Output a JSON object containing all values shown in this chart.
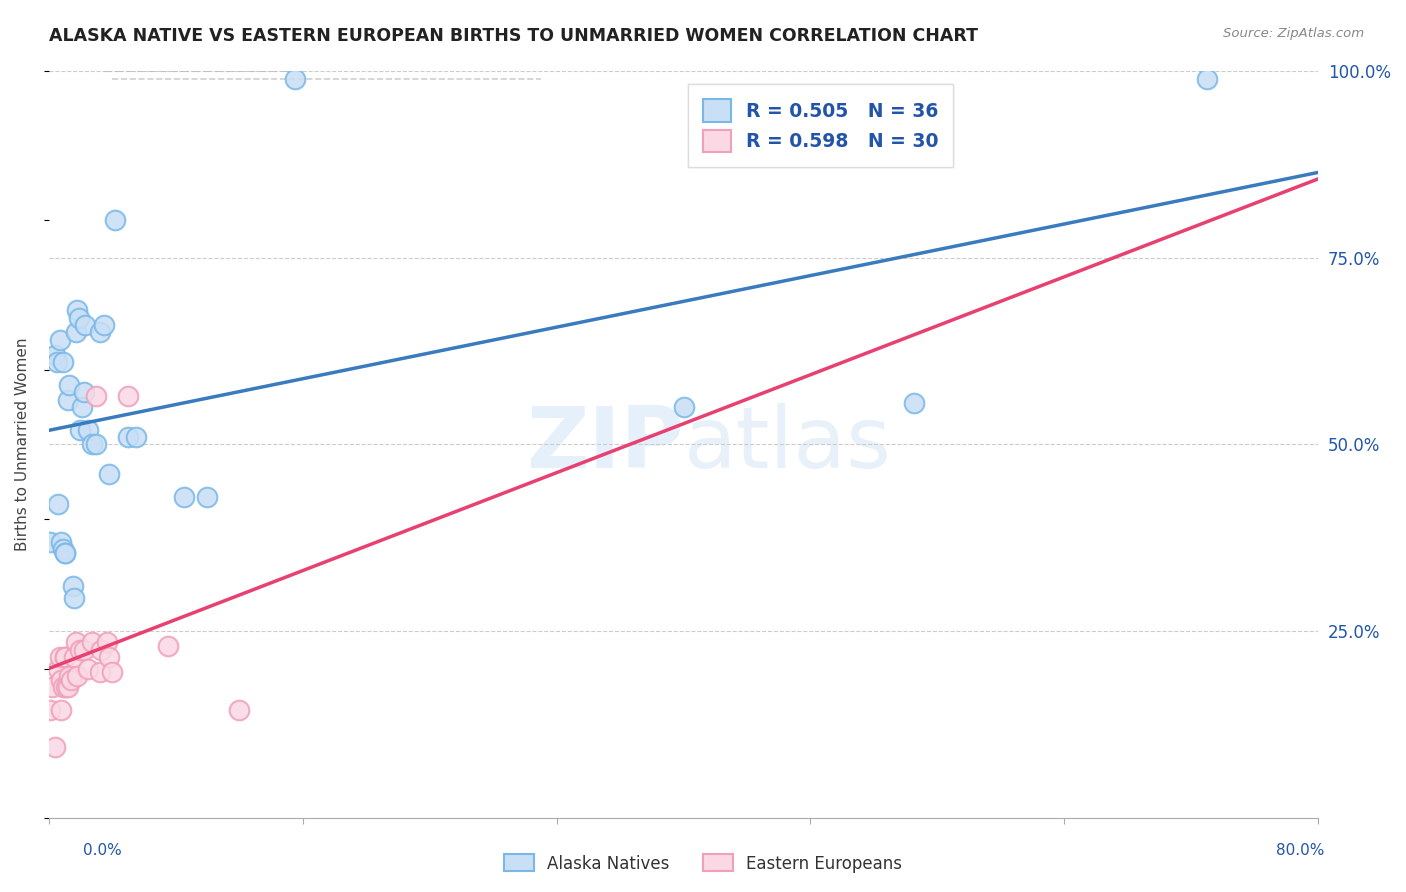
{
  "title": "ALASKA NATIVE VS EASTERN EUROPEAN BIRTHS TO UNMARRIED WOMEN CORRELATION CHART",
  "source": "Source: ZipAtlas.com",
  "ylabel": "Births to Unmarried Women",
  "legend_blue_label": "R = 0.505   N = 36",
  "legend_pink_label": "R = 0.598   N = 30",
  "legend_bottom_blue": "Alaska Natives",
  "legend_bottom_pink": "Eastern Europeans",
  "watermark": "ZIPatlas",
  "blue_color": "#7ab8e8",
  "blue_fill": "#c8dff5",
  "pink_color": "#f0a0b8",
  "pink_fill": "#fad8e4",
  "blue_line_color": "#3a7bbf",
  "pink_line_color": "#e84070",
  "blue_scatter_x": [
    0.001,
    0.004,
    0.005,
    0.006,
    0.007,
    0.008,
    0.009,
    0.009,
    0.01,
    0.01,
    0.012,
    0.013,
    0.015,
    0.016,
    0.017,
    0.018,
    0.019,
    0.02,
    0.021,
    0.022,
    0.023,
    0.025,
    0.027,
    0.03,
    0.032,
    0.035,
    0.038,
    0.042,
    0.05,
    0.055,
    0.085,
    0.1,
    0.155,
    0.4,
    0.545,
    0.73
  ],
  "blue_scatter_y": [
    0.37,
    0.62,
    0.61,
    0.42,
    0.64,
    0.37,
    0.36,
    0.61,
    0.355,
    0.355,
    0.56,
    0.58,
    0.31,
    0.295,
    0.65,
    0.68,
    0.67,
    0.52,
    0.55,
    0.57,
    0.66,
    0.52,
    0.5,
    0.5,
    0.65,
    0.66,
    0.46,
    0.8,
    0.51,
    0.51,
    0.43,
    0.43,
    0.99,
    0.55,
    0.555,
    0.99
  ],
  "pink_scatter_x": [
    0.001,
    0.002,
    0.004,
    0.006,
    0.007,
    0.008,
    0.008,
    0.009,
    0.01,
    0.01,
    0.011,
    0.012,
    0.013,
    0.014,
    0.016,
    0.017,
    0.018,
    0.02,
    0.022,
    0.025,
    0.027,
    0.03,
    0.032,
    0.033,
    0.037,
    0.038,
    0.04,
    0.05,
    0.075,
    0.12
  ],
  "pink_scatter_y": [
    0.145,
    0.175,
    0.095,
    0.2,
    0.215,
    0.145,
    0.185,
    0.175,
    0.215,
    0.215,
    0.175,
    0.175,
    0.19,
    0.185,
    0.215,
    0.235,
    0.19,
    0.225,
    0.225,
    0.2,
    0.235,
    0.565,
    0.195,
    0.225,
    0.235,
    0.215,
    0.195,
    0.565,
    0.23,
    0.145
  ],
  "xmin": 0.0,
  "xmax": 0.8,
  "ymin": 0.0,
  "ymax": 1.0,
  "ytick_vals": [
    0.0,
    0.25,
    0.5,
    0.75,
    1.0
  ],
  "ytick_labels": [
    "",
    "25.0%",
    "50.0%",
    "75.0%",
    "100.0%"
  ],
  "xtick_vals": [
    0.0,
    0.16,
    0.32,
    0.48,
    0.64,
    0.8
  ]
}
